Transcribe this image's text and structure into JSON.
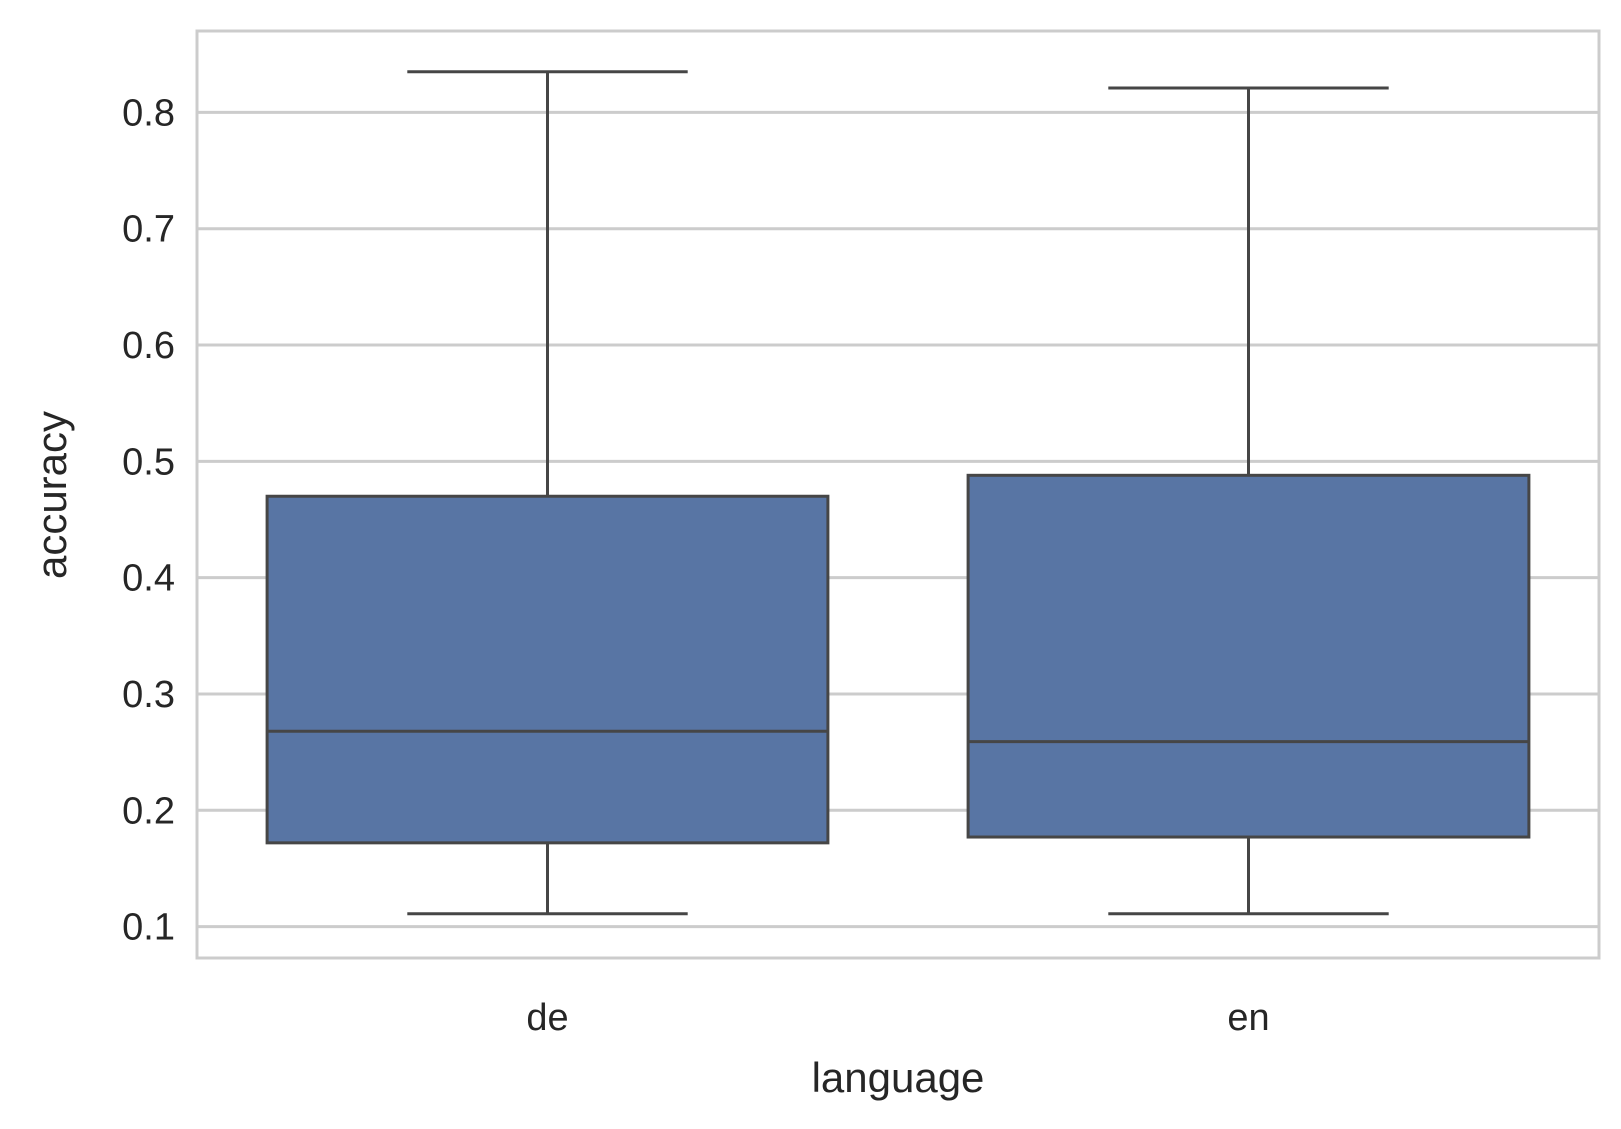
{
  "chart_data": {
    "type": "box",
    "xlabel": "language",
    "ylabel": "accuracy",
    "ylim": [
      0.073,
      0.87
    ],
    "yticks": [
      0.1,
      0.2,
      0.3,
      0.4,
      0.5,
      0.6,
      0.7,
      0.8
    ],
    "ytick_labels": [
      "0.1",
      "0.2",
      "0.3",
      "0.4",
      "0.5",
      "0.6",
      "0.7",
      "0.8"
    ],
    "grid": "horizontal",
    "colors": {
      "box_fill": "#5875a4",
      "box_edge": "#464646",
      "grid": "#cccccc",
      "frame": "#cccccc"
    },
    "categories": [
      "de",
      "en"
    ],
    "boxes": [
      {
        "category": "de",
        "whisker_low": 0.111,
        "q1": 0.172,
        "median": 0.268,
        "q3": 0.47,
        "whisker_high": 0.835
      },
      {
        "category": "en",
        "whisker_low": 0.111,
        "q1": 0.177,
        "median": 0.259,
        "q3": 0.488,
        "whisker_high": 0.821
      }
    ]
  }
}
